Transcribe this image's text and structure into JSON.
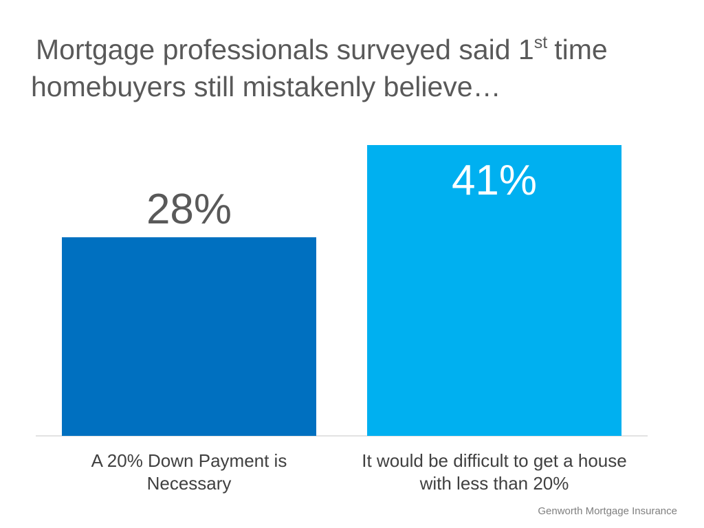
{
  "chart_data": {
    "type": "bar",
    "title": [
      "Mortgage professionals surveyed said 1",
      "st",
      "time",
      "homebuyers still mistakenly believe…"
    ],
    "categories": [
      [
        "A 20% Down Payment is",
        "Necessary"
      ],
      [
        "It would be difficult to get a house",
        "with less than 20%"
      ]
    ],
    "values": [
      28,
      41
    ],
    "value_labels": [
      "28%",
      "41%"
    ],
    "colors": [
      "#0070c0",
      "#00b0f0"
    ],
    "source": "Genworth Mortgage Insurance"
  }
}
